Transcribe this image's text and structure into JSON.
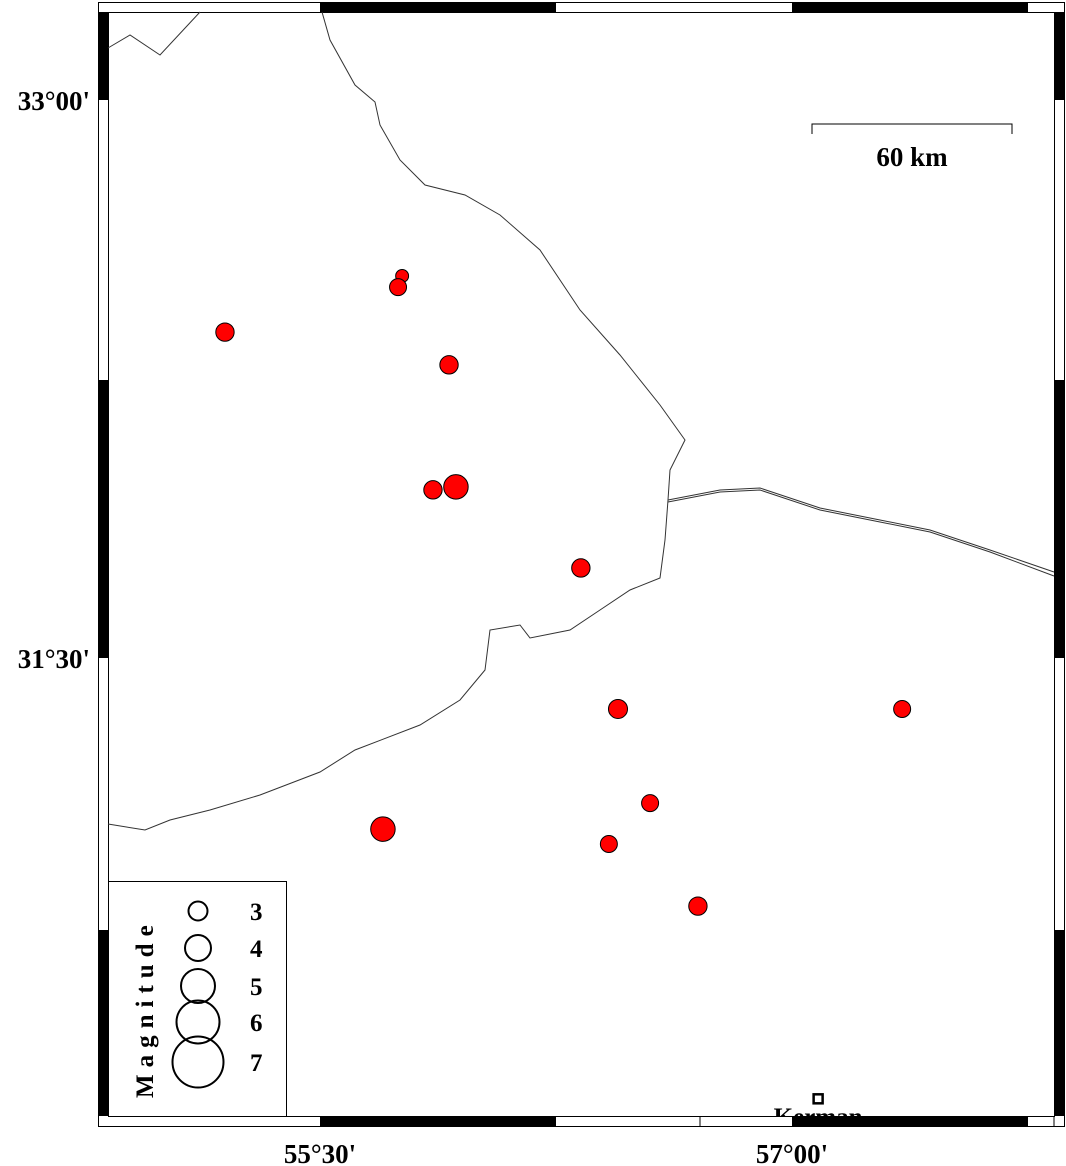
{
  "map": {
    "lon_range": [
      55.0,
      58.0
    ],
    "lat_range": [
      30.25,
      33.25
    ],
    "x_ticks": [
      {
        "value": 55.5,
        "label": "55°30'"
      },
      {
        "value": 57.0,
        "label": "57°00'"
      }
    ],
    "y_ticks": [
      {
        "value": 33.0,
        "label": "33°00'"
      },
      {
        "value": 31.5,
        "label": "31°30'"
      }
    ],
    "scale_bar": {
      "label": "60 km"
    },
    "city": {
      "name": "Kerman",
      "lon": 57.083,
      "lat": 30.315
    },
    "event_color": "#ff0000",
    "events": [
      {
        "lon": 55.761,
        "lat": 32.527,
        "magnitude": 1.9
      },
      {
        "lon": 55.748,
        "lat": 32.497,
        "magnitude": 2.5
      },
      {
        "lon": 55.198,
        "lat": 32.376,
        "magnitude": 2.7
      },
      {
        "lon": 55.91,
        "lat": 32.288,
        "magnitude": 2.7
      },
      {
        "lon": 55.859,
        "lat": 31.952,
        "magnitude": 2.7
      },
      {
        "lon": 55.932,
        "lat": 31.96,
        "magnitude": 3.6
      },
      {
        "lon": 56.329,
        "lat": 31.742,
        "magnitude": 2.7
      },
      {
        "lon": 56.447,
        "lat": 31.363,
        "magnitude": 2.8
      },
      {
        "lon": 57.35,
        "lat": 31.363,
        "magnitude": 2.5
      },
      {
        "lon": 56.549,
        "lat": 31.11,
        "magnitude": 2.5
      },
      {
        "lon": 56.418,
        "lat": 31.0,
        "magnitude": 2.5
      },
      {
        "lon": 55.7,
        "lat": 31.04,
        "magnitude": 3.6
      },
      {
        "lon": 56.701,
        "lat": 30.833,
        "magnitude": 2.7
      }
    ]
  },
  "legend": {
    "title": "Magnitude",
    "items": [
      {
        "label": "3",
        "magnitude": 3
      },
      {
        "label": "4",
        "magnitude": 4
      },
      {
        "label": "5",
        "magnitude": 5
      },
      {
        "label": "6",
        "magnitude": 6
      },
      {
        "label": "7",
        "magnitude": 7
      }
    ]
  }
}
